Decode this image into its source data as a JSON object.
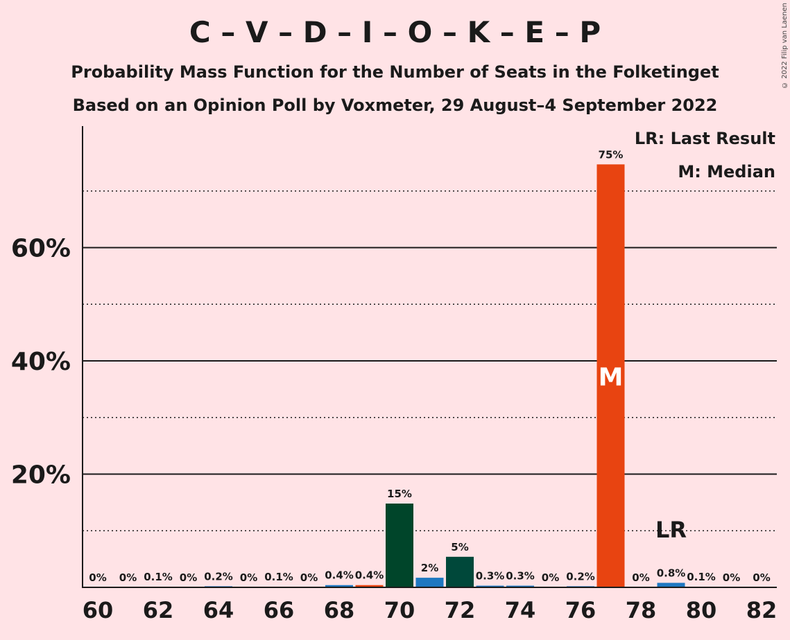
{
  "title": "C – V – D – I – O – K – E – P",
  "subtitle1": "Probability Mass Function for the Number of Seats in the Folketinget",
  "subtitle2": "Based on an Opinion Poll by Voxmeter, 29 August–4 September 2022",
  "copyright": "© 2022 Filip van Laenen",
  "legend": {
    "lr": "LR: Last Result",
    "m": "M: Median"
  },
  "colors": {
    "background": "#FFE3E6",
    "dark_green": "#00452A",
    "teal_green": "#00483A",
    "blue": "#1E78C1",
    "orange_red": "#E84411",
    "text": "#1a1a1a"
  },
  "chart_data": {
    "type": "bar",
    "x_label_values": [
      60,
      62,
      64,
      66,
      68,
      70,
      72,
      74,
      76,
      78,
      80,
      82
    ],
    "y_tick_labels": [
      "20%",
      "40%",
      "60%"
    ],
    "ylim": [
      0,
      80
    ],
    "grid": "solid major lines at 20% steps, dotted minor lines at 10% steps",
    "median_seats": 77,
    "last_result_seats": 79,
    "median_marker": "M",
    "last_result_marker": "LR",
    "bars": [
      {
        "seats": 60,
        "value": 0,
        "label": "0%",
        "color": "#1E78C1"
      },
      {
        "seats": 61,
        "value": 0,
        "label": "0%",
        "color": "#1E78C1"
      },
      {
        "seats": 62,
        "value": 0.1,
        "label": "0.1%",
        "color": "#1E78C1"
      },
      {
        "seats": 63,
        "value": 0,
        "label": "0%",
        "color": "#1E78C1"
      },
      {
        "seats": 64,
        "value": 0.2,
        "label": "0.2%",
        "color": "#1E78C1"
      },
      {
        "seats": 65,
        "value": 0,
        "label": "0%",
        "color": "#1E78C1"
      },
      {
        "seats": 66,
        "value": 0.1,
        "label": "0.1%",
        "color": "#1E78C1"
      },
      {
        "seats": 67,
        "value": 0,
        "label": "0%",
        "color": "#1E78C1"
      },
      {
        "seats": 68,
        "value": 0.4,
        "label": "0.4%",
        "color": "#1E78C1"
      },
      {
        "seats": 69,
        "value": 0.4,
        "label": "0.4%",
        "color": "#E84411"
      },
      {
        "seats": 70,
        "value": 14.8,
        "label": "15%",
        "color": "#00452A"
      },
      {
        "seats": 71,
        "value": 1.7,
        "label": "2%",
        "color": "#1E78C1"
      },
      {
        "seats": 72,
        "value": 5.4,
        "label": "5%",
        "color": "#00483A"
      },
      {
        "seats": 73,
        "value": 0.3,
        "label": "0.3%",
        "color": "#1E78C1"
      },
      {
        "seats": 74,
        "value": 0.3,
        "label": "0.3%",
        "color": "#1E78C1"
      },
      {
        "seats": 75,
        "value": 0,
        "label": "0%",
        "color": "#1E78C1"
      },
      {
        "seats": 76,
        "value": 0.2,
        "label": "0.2%",
        "color": "#1E78C1"
      },
      {
        "seats": 77,
        "value": 74.7,
        "label": "75%",
        "color": "#E84411"
      },
      {
        "seats": 78,
        "value": 0,
        "label": "0%",
        "color": "#1E78C1"
      },
      {
        "seats": 79,
        "value": 0.8,
        "label": "0.8%",
        "color": "#1E78C1"
      },
      {
        "seats": 80,
        "value": 0.1,
        "label": "0.1%",
        "color": "#1E78C1"
      },
      {
        "seats": 81,
        "value": 0,
        "label": "0%",
        "color": "#1E78C1"
      },
      {
        "seats": 82,
        "value": 0,
        "label": "0%",
        "color": "#1E78C1"
      }
    ]
  }
}
